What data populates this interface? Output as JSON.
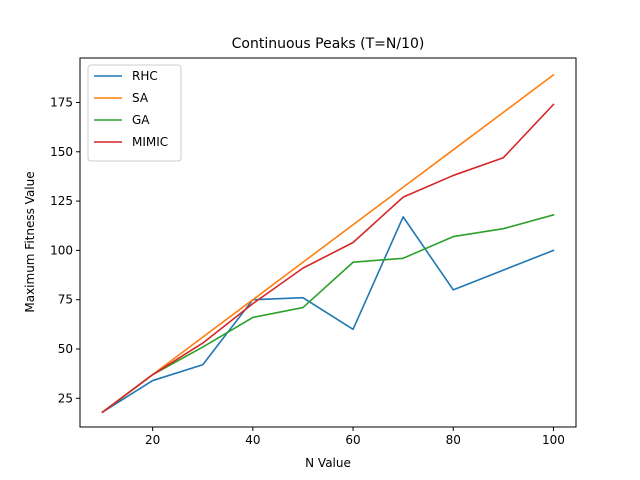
{
  "chart_data": {
    "type": "line",
    "title": "Continuous Peaks (T=N/10)",
    "xlabel": "N Value",
    "ylabel": "Maximum Fitness Value",
    "xlim": [
      5.5,
      104.5
    ],
    "ylim": [
      10.45,
      197.55
    ],
    "xticks": [
      20,
      40,
      60,
      80,
      100
    ],
    "yticks": [
      25,
      50,
      75,
      100,
      125,
      150,
      175
    ],
    "grid": false,
    "legend_position": "top-left",
    "x": [
      10,
      20,
      30,
      40,
      50,
      60,
      70,
      80,
      90,
      100
    ],
    "series": [
      {
        "name": "RHC",
        "color": "#1f77b4",
        "values": [
          18,
          34,
          42,
          75,
          76,
          60,
          117,
          80,
          90,
          100
        ]
      },
      {
        "name": "SA",
        "color": "#ff7f0e",
        "values": [
          18,
          37,
          56,
          75,
          94,
          113,
          132,
          151,
          170,
          189
        ]
      },
      {
        "name": "GA",
        "color": "#2ca02c",
        "values": [
          18,
          37,
          51,
          66,
          71,
          94,
          96,
          107,
          111,
          118
        ]
      },
      {
        "name": "MIMIC",
        "color": "#d62728",
        "values": [
          18,
          37,
          53,
          73,
          91,
          104,
          127,
          138,
          147,
          174
        ]
      }
    ]
  }
}
